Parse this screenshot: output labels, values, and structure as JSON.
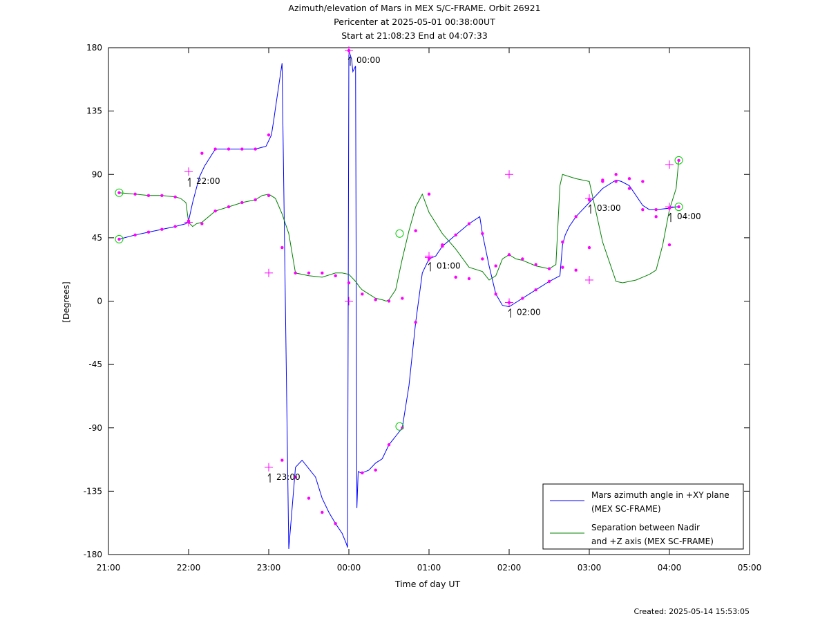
{
  "titles": [
    "Azimuth/elevation of Mars in MEX S/C-FRAME.  Orbit 26921",
    "Pericenter at 2025-05-01 00:38:00UT",
    "Start at 21:08:23 End at 04:07:33"
  ],
  "footer": {
    "created": "Created: 2025-05-14 15:53:05"
  },
  "chart_data": {
    "type": "line",
    "title": "Azimuth/elevation of Mars in MEX S/C-FRAME.  Orbit 26921",
    "xlabel": "Time of day UT",
    "ylabel": "[Degrees]",
    "xlim": [
      "21:00",
      "05:00"
    ],
    "ylim": [
      -180,
      180
    ],
    "x_ticks": [
      "21:00",
      "22:00",
      "23:00",
      "00:00",
      "01:00",
      "02:00",
      "03:00",
      "04:00",
      "05:00"
    ],
    "y_ticks": [
      180,
      135,
      90,
      45,
      0,
      -45,
      -90,
      -135,
      -180
    ],
    "grid": false,
    "legend_position": "bottom-right",
    "colors": {
      "azimuth": "#0000ff",
      "separation": "#008000",
      "markers": "#ff00ff",
      "endpoints": "#00cc00"
    },
    "series": [
      {
        "name": "Mars azimuth angle in +XY plane (MEX SC-FRAME)",
        "color": "#0000ff",
        "x": [
          "21:08",
          "21:20",
          "21:30",
          "21:40",
          "21:50",
          "21:58",
          "22:00",
          "22:03",
          "22:08",
          "22:12",
          "22:20",
          "22:30",
          "22:40",
          "22:50",
          "22:58",
          "23:02",
          "23:04",
          "23:05",
          "23:10",
          "23:15",
          "23:20",
          "23:25",
          "23:35",
          "23:40",
          "23:45",
          "23:50",
          "23:55",
          "23:58",
          "23:59",
          "00:00",
          "00:02",
          "00:03",
          "00:05",
          "00:06",
          "00:07",
          "00:09",
          "00:10",
          "00:15",
          "00:20",
          "00:25",
          "00:30",
          "00:35",
          "00:40",
          "00:45",
          "00:50",
          "00:55",
          "01:00",
          "01:05",
          "01:10",
          "01:20",
          "01:30",
          "01:38",
          "01:40",
          "01:45",
          "01:50",
          "01:55",
          "02:00",
          "02:05",
          "02:10",
          "02:20",
          "02:30",
          "02:38",
          "02:40",
          "02:42",
          "02:45",
          "02:50",
          "02:55",
          "03:00",
          "03:05",
          "03:10",
          "03:20",
          "03:24",
          "03:30",
          "03:40",
          "03:45",
          "03:50",
          "04:00",
          "04:05",
          "04:07"
        ],
        "y": [
          44,
          47,
          49,
          51,
          53,
          55,
          57,
          70,
          88,
          96,
          108,
          108,
          108,
          108,
          110,
          118,
          130,
          137,
          169,
          -176,
          -118,
          -113,
          -125,
          -140,
          -150,
          -158,
          -165,
          -172,
          -175,
          178,
          172,
          163,
          167,
          -147,
          -121,
          -122,
          -122,
          -120,
          -115,
          -112,
          -102,
          -96,
          -90,
          -60,
          -15,
          20,
          30,
          32,
          39,
          47,
          55,
          60,
          48,
          25,
          5,
          -3,
          -4,
          -1,
          2,
          8,
          14,
          18,
          40,
          47,
          53,
          60,
          65,
          70,
          75,
          80,
          86,
          85,
          82,
          68,
          65,
          65,
          66,
          67,
          67
        ],
        "markers_x": [
          "21:08",
          "21:20",
          "21:30",
          "21:40",
          "21:50",
          "22:00",
          "22:10",
          "22:20",
          "22:30",
          "22:40",
          "22:50",
          "23:00",
          "23:10",
          "23:20",
          "23:30",
          "23:40",
          "23:50",
          "00:00",
          "00:10",
          "00:20",
          "00:30",
          "00:40",
          "00:50",
          "01:00",
          "01:10",
          "01:20",
          "01:30",
          "01:40",
          "01:50",
          "02:00",
          "02:10",
          "02:20",
          "02:30",
          "02:40",
          "02:50",
          "03:00",
          "03:10",
          "03:20",
          "03:30",
          "03:40",
          "03:50",
          "04:00",
          "04:07"
        ],
        "markers_y": [
          44,
          47,
          49,
          51,
          53,
          57,
          105,
          108,
          108,
          108,
          108,
          118,
          -113,
          -125,
          -140,
          -150,
          -158,
          178,
          -122,
          -120,
          -102,
          -90,
          -15,
          30,
          39,
          47,
          55,
          48,
          5,
          -1,
          2,
          8,
          14,
          42,
          60,
          72,
          86,
          85,
          80,
          65,
          65,
          66,
          67
        ]
      },
      {
        "name": "Separation between Nadir and +Z axis (MEX SC-FRAME)",
        "color": "#008000",
        "x": [
          "21:08",
          "21:20",
          "21:30",
          "21:40",
          "21:50",
          "21:54",
          "21:58",
          "22:00",
          "22:03",
          "22:06",
          "22:10",
          "22:20",
          "22:30",
          "22:40",
          "22:50",
          "22:55",
          "23:00",
          "23:05",
          "23:10",
          "23:15",
          "23:20",
          "23:30",
          "23:40",
          "23:50",
          "23:55",
          "00:00",
          "00:05",
          "00:08",
          "00:10",
          "00:15",
          "00:20",
          "00:25",
          "00:28",
          "00:30",
          "00:35",
          "00:40",
          "00:45",
          "00:50",
          "00:55",
          "01:00",
          "01:10",
          "01:20",
          "01:30",
          "01:40",
          "01:45",
          "01:50",
          "01:55",
          "02:00",
          "02:05",
          "02:10",
          "02:15",
          "02:20",
          "02:25",
          "02:30",
          "02:35",
          "02:38",
          "02:40",
          "02:50",
          "03:00",
          "03:10",
          "03:20",
          "03:25",
          "03:30",
          "03:35",
          "03:40",
          "03:45",
          "03:50",
          "03:55",
          "04:00",
          "04:05",
          "04:07"
        ],
        "y": [
          77,
          76,
          75,
          75,
          74,
          73,
          70,
          56,
          53,
          55,
          56,
          64,
          67,
          70,
          72,
          75,
          76,
          73,
          62,
          48,
          20,
          18,
          17,
          20,
          20,
          19,
          14,
          10,
          8,
          5,
          2,
          1,
          0,
          1,
          8,
          30,
          50,
          67,
          76,
          63,
          48,
          37,
          24,
          21,
          15,
          18,
          30,
          33,
          30,
          29,
          27,
          25,
          24,
          23,
          26,
          82,
          90,
          87,
          85,
          42,
          14,
          13,
          14,
          15,
          17,
          19,
          22,
          40,
          65,
          80,
          100
        ],
        "markers_x": [
          "21:08",
          "21:20",
          "21:30",
          "21:40",
          "21:50",
          "22:00",
          "22:10",
          "22:20",
          "22:30",
          "22:40",
          "22:50",
          "23:00",
          "23:10",
          "23:20",
          "23:30",
          "23:40",
          "23:50",
          "00:00",
          "00:10",
          "00:20",
          "00:30",
          "00:40",
          "00:50",
          "01:00",
          "01:10",
          "01:20",
          "01:30",
          "01:40",
          "01:50",
          "02:00",
          "02:10",
          "02:20",
          "02:30",
          "02:40",
          "02:50",
          "03:00",
          "03:10",
          "03:20",
          "03:30",
          "03:40",
          "03:50",
          "04:00",
          "04:07"
        ],
        "markers_y": [
          77,
          76,
          75,
          75,
          74,
          56,
          55,
          64,
          67,
          70,
          72,
          75,
          38,
          20,
          20,
          20,
          18,
          13,
          5,
          1,
          0,
          2,
          50,
          76,
          40,
          17,
          16,
          30,
          25,
          33,
          30,
          26,
          23,
          24,
          22,
          38,
          85,
          90,
          87,
          85,
          60,
          40,
          100
        ]
      }
    ],
    "annotations": [
      {
        "text": "22:00",
        "x": "22:00",
        "y": 92,
        "target_series": 0
      },
      {
        "text": "23:00",
        "x": "23:00",
        "y": -118,
        "target_series": 0
      },
      {
        "text": "00:00",
        "x": "00:00",
        "y": 178,
        "target_series": 0
      },
      {
        "text": "01:00",
        "x": "01:00",
        "y": 32,
        "target_series": 0
      },
      {
        "text": "02:00",
        "x": "02:00",
        "y": -1,
        "target_series": 0
      },
      {
        "text": "03:00",
        "x": "03:00",
        "y": 73,
        "target_series": 0
      },
      {
        "text": "04:00",
        "x": "04:00",
        "y": 67,
        "target_series": 0
      }
    ],
    "separation_hour_crosses": [
      {
        "x": "22:00",
        "y": 56
      },
      {
        "x": "23:00",
        "y": 20
      },
      {
        "x": "00:00",
        "y": 0
      },
      {
        "x": "01:00",
        "y": 31
      },
      {
        "x": "02:00",
        "y": 90
      },
      {
        "x": "03:00",
        "y": 15
      },
      {
        "x": "04:00",
        "y": 97
      }
    ],
    "circle_markers": [
      {
        "x": "21:08",
        "y": 44
      },
      {
        "x": "21:08",
        "y": 77
      },
      {
        "x": "00:38",
        "y": 48
      },
      {
        "x": "00:38",
        "y": -89
      },
      {
        "x": "04:07",
        "y": 67
      },
      {
        "x": "04:07",
        "y": 100
      }
    ]
  }
}
